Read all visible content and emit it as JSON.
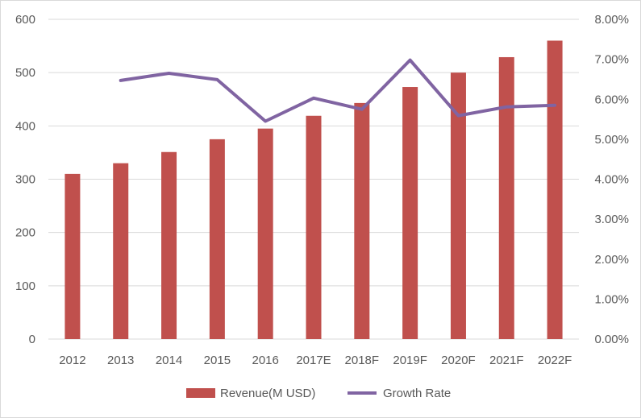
{
  "chart_data": {
    "type": "bar",
    "categories": [
      "2012",
      "2013",
      "2014",
      "2015",
      "2016",
      "2017E",
      "2018F",
      "2019F",
      "2020F",
      "2021F",
      "2022F"
    ],
    "series": [
      {
        "name": "Revenue(M USD)",
        "type": "bar",
        "axis": "left",
        "color": "#c0504d",
        "values": [
          310,
          330,
          351,
          375,
          395,
          419,
          443,
          473,
          500,
          529,
          560
        ]
      },
      {
        "name": "Growth Rate",
        "type": "line",
        "axis": "right",
        "color": "#8064a2",
        "values": [
          null,
          6.47,
          6.65,
          6.49,
          5.45,
          6.03,
          5.75,
          6.98,
          5.59,
          5.81,
          5.85
        ]
      }
    ],
    "y_left": {
      "lim": [
        0,
        600
      ],
      "ticks": [
        "0",
        "100",
        "200",
        "300",
        "400",
        "500",
        "600"
      ]
    },
    "y_right": {
      "lim": [
        0,
        8
      ],
      "ticks": [
        "0.00%",
        "1.00%",
        "2.00%",
        "3.00%",
        "4.00%",
        "5.00%",
        "6.00%",
        "7.00%",
        "8.00%"
      ]
    },
    "grid": true,
    "legend_position": "bottom"
  }
}
